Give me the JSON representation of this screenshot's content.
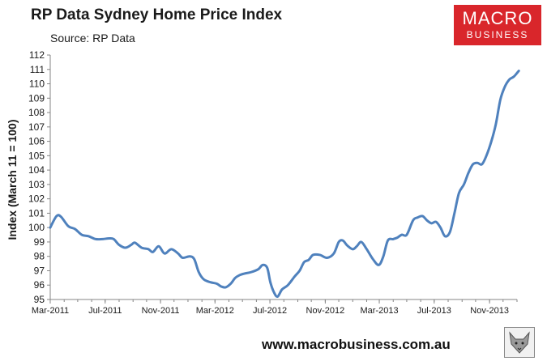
{
  "header": {
    "title": "RP Data Sydney Home Price Index",
    "subtitle": "Source: RP Data"
  },
  "logo": {
    "line1": "MACRO",
    "line2": "BUSINESS",
    "color": "#d9262b"
  },
  "footer": {
    "url": "www.macrobusiness.com.au",
    "icon": "fox-head-icon"
  },
  "chart_data": {
    "type": "line",
    "title": "RP Data Sydney Home Price Index",
    "subtitle": "Source: RP Data",
    "xlabel": "",
    "ylabel": "Index (March 11 = 100)",
    "ylim": [
      95,
      112
    ],
    "y_ticks": [
      95,
      96,
      97,
      98,
      99,
      100,
      101,
      102,
      103,
      104,
      105,
      106,
      107,
      108,
      109,
      110,
      111,
      112
    ],
    "x_tick_labels": [
      "Mar-2011",
      "Jul-2011",
      "Nov-2011",
      "Mar-2012",
      "Jul-2012",
      "Nov-2012",
      "Mar-2013",
      "Jul-2013",
      "Nov-2013"
    ],
    "x_start": "2011-03",
    "x_end": "2014-01",
    "grid": false,
    "legend": "none",
    "line_color": "#4f81bd",
    "series": [
      {
        "name": "",
        "points": [
          [
            "2011-03-01",
            100.0
          ],
          [
            "2011-03-15",
            100.8
          ],
          [
            "2011-03-25",
            100.75
          ],
          [
            "2011-04-10",
            100.1
          ],
          [
            "2011-04-25",
            99.9
          ],
          [
            "2011-05-10",
            99.5
          ],
          [
            "2011-05-25",
            99.4
          ],
          [
            "2011-06-10",
            99.2
          ],
          [
            "2011-06-25",
            99.2
          ],
          [
            "2011-07-10",
            99.25
          ],
          [
            "2011-07-20",
            99.2
          ],
          [
            "2011-08-01",
            98.8
          ],
          [
            "2011-08-15",
            98.6
          ],
          [
            "2011-08-28",
            98.8
          ],
          [
            "2011-09-05",
            98.95
          ],
          [
            "2011-09-20",
            98.6
          ],
          [
            "2011-10-05",
            98.5
          ],
          [
            "2011-10-15",
            98.3
          ],
          [
            "2011-10-28",
            98.7
          ],
          [
            "2011-11-10",
            98.2
          ],
          [
            "2011-11-25",
            98.5
          ],
          [
            "2011-12-10",
            98.2
          ],
          [
            "2011-12-20",
            97.9
          ],
          [
            "2012-01-05",
            98.0
          ],
          [
            "2012-01-15",
            97.8
          ],
          [
            "2012-01-25",
            96.9
          ],
          [
            "2012-02-05",
            96.4
          ],
          [
            "2012-02-20",
            96.2
          ],
          [
            "2012-03-05",
            96.1
          ],
          [
            "2012-03-15",
            95.9
          ],
          [
            "2012-03-25",
            95.85
          ],
          [
            "2012-04-05",
            96.1
          ],
          [
            "2012-04-15",
            96.5
          ],
          [
            "2012-04-25",
            96.7
          ],
          [
            "2012-05-05",
            96.8
          ],
          [
            "2012-05-20",
            96.9
          ],
          [
            "2012-06-05",
            97.1
          ],
          [
            "2012-06-15",
            97.4
          ],
          [
            "2012-06-25",
            97.2
          ],
          [
            "2012-07-02",
            96.2
          ],
          [
            "2012-07-10",
            95.5
          ],
          [
            "2012-07-18",
            95.2
          ],
          [
            "2012-07-28",
            95.7
          ],
          [
            "2012-08-10",
            96.0
          ],
          [
            "2012-08-25",
            96.6
          ],
          [
            "2012-09-05",
            97.0
          ],
          [
            "2012-09-15",
            97.6
          ],
          [
            "2012-09-25",
            97.75
          ],
          [
            "2012-10-05",
            98.1
          ],
          [
            "2012-10-20",
            98.1
          ],
          [
            "2012-11-05",
            97.9
          ],
          [
            "2012-11-20",
            98.2
          ],
          [
            "2012-12-01",
            99.0
          ],
          [
            "2012-12-10",
            99.1
          ],
          [
            "2012-12-20",
            98.75
          ],
          [
            "2013-01-01",
            98.5
          ],
          [
            "2013-01-10",
            98.7
          ],
          [
            "2013-01-20",
            99.0
          ],
          [
            "2013-02-01",
            98.5
          ],
          [
            "2013-02-15",
            97.8
          ],
          [
            "2013-02-28",
            97.4
          ],
          [
            "2013-03-10",
            98.0
          ],
          [
            "2013-03-20",
            99.1
          ],
          [
            "2013-04-01",
            99.2
          ],
          [
            "2013-04-10",
            99.3
          ],
          [
            "2013-04-20",
            99.5
          ],
          [
            "2013-05-01",
            99.5
          ],
          [
            "2013-05-15",
            100.5
          ],
          [
            "2013-05-25",
            100.7
          ],
          [
            "2013-06-05",
            100.8
          ],
          [
            "2013-06-15",
            100.5
          ],
          [
            "2013-06-25",
            100.3
          ],
          [
            "2013-07-05",
            100.4
          ],
          [
            "2013-07-15",
            100.0
          ],
          [
            "2013-07-25",
            99.4
          ],
          [
            "2013-08-05",
            99.7
          ],
          [
            "2013-08-15",
            101.0
          ],
          [
            "2013-08-25",
            102.4
          ],
          [
            "2013-09-05",
            103.0
          ],
          [
            "2013-09-15",
            103.8
          ],
          [
            "2013-09-25",
            104.4
          ],
          [
            "2013-10-05",
            104.5
          ],
          [
            "2013-10-15",
            104.4
          ],
          [
            "2013-10-25",
            105.0
          ],
          [
            "2013-11-05",
            106.0
          ],
          [
            "2013-11-15",
            107.2
          ],
          [
            "2013-11-25",
            108.9
          ],
          [
            "2013-12-05",
            109.8
          ],
          [
            "2013-12-15",
            110.3
          ],
          [
            "2013-12-25",
            110.5
          ],
          [
            "2014-01-05",
            110.9
          ]
        ]
      }
    ]
  }
}
